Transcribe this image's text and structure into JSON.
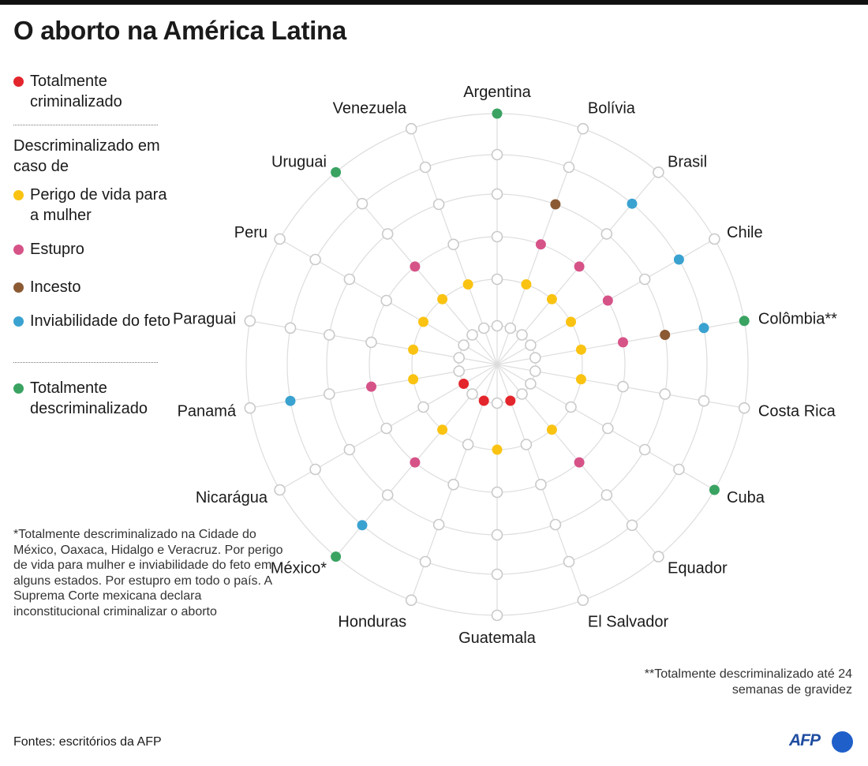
{
  "title": "O aborto na América Latina",
  "legend": {
    "total_crim": "Totalmente criminalizado",
    "decrim_header": "Descriminalizado em caso de",
    "vida": "Perigo de vida para a mulher",
    "estupro": "Estupro",
    "incesto": "Incesto",
    "inviab": "Inviabilidade do feto",
    "total_decrim": "Totalmente descriminalizado"
  },
  "colors": {
    "crim": "#e3262c",
    "vida": "#fac312",
    "estupro": "#d65388",
    "incesto": "#8b5a33",
    "inviab": "#3aa2d0",
    "decrim": "#3aa362",
    "empty_fill": "#ffffff",
    "empty_stroke": "#c9c9c9",
    "grid": "#dddddd"
  },
  "chart_data": {
    "type": "radial",
    "rings": [
      "Totalmente criminalizado",
      "Perigo de vida para a mulher",
      "Estupro",
      "Incesto",
      "Inviabilidade do feto",
      "Totalmente descriminalizado"
    ],
    "countries": [
      {
        "name": "Argentina",
        "status": [
          null,
          null,
          null,
          null,
          null,
          "decrim"
        ]
      },
      {
        "name": "Bolívia",
        "status": [
          null,
          "vida",
          "estupro",
          "incesto",
          null,
          null
        ]
      },
      {
        "name": "Brasil",
        "status": [
          null,
          "vida",
          "estupro",
          null,
          "inviab",
          null
        ]
      },
      {
        "name": "Chile",
        "status": [
          null,
          "vida",
          "estupro",
          null,
          "inviab",
          null
        ]
      },
      {
        "name": "Colômbia**",
        "status": [
          null,
          "vida",
          "estupro",
          "incesto",
          "inviab",
          "decrim"
        ]
      },
      {
        "name": "Costa Rica",
        "status": [
          null,
          "vida",
          null,
          null,
          null,
          null
        ]
      },
      {
        "name": "Cuba",
        "status": [
          null,
          null,
          null,
          null,
          null,
          "decrim"
        ]
      },
      {
        "name": "Equador",
        "status": [
          null,
          "vida",
          "estupro",
          null,
          null,
          null
        ]
      },
      {
        "name": "El Salvador",
        "status": [
          "crim",
          null,
          null,
          null,
          null,
          null
        ]
      },
      {
        "name": "Guatemala",
        "status": [
          null,
          "vida",
          null,
          null,
          null,
          null
        ]
      },
      {
        "name": "Honduras",
        "status": [
          "crim",
          null,
          null,
          null,
          null,
          null
        ]
      },
      {
        "name": "México*",
        "status": [
          null,
          "vida",
          "estupro",
          null,
          "inviab",
          "decrim"
        ]
      },
      {
        "name": "Nicarágua",
        "status": [
          "crim",
          null,
          null,
          null,
          null,
          null
        ]
      },
      {
        "name": "Panamá",
        "status": [
          null,
          "vida",
          "estupro",
          null,
          "inviab",
          null
        ]
      },
      {
        "name": "Paraguai",
        "status": [
          null,
          "vida",
          null,
          null,
          null,
          null
        ]
      },
      {
        "name": "Peru",
        "status": [
          null,
          "vida",
          null,
          null,
          null,
          null
        ]
      },
      {
        "name": "Uruguai",
        "status": [
          null,
          "vida",
          "estupro",
          null,
          null,
          "decrim"
        ]
      },
      {
        "name": "Venezuela",
        "status": [
          null,
          "vida",
          null,
          null,
          null,
          null
        ]
      }
    ]
  },
  "notes": {
    "mexico": "*Totalmente descriminalizado na Cidade do México, Oaxaca, Hidalgo e Veracruz. Por perigo de vida para mulher e inviabilidade do feto em alguns estados. Por estupro em todo o país. A Suprema Corte mexicana declara inconstitucional criminalizar o aborto",
    "colombia": "**Totalmente descriminalizado até 24 semanas de gravidez"
  },
  "source": "Fontes: escritórios da AFP",
  "logo": "AFP"
}
